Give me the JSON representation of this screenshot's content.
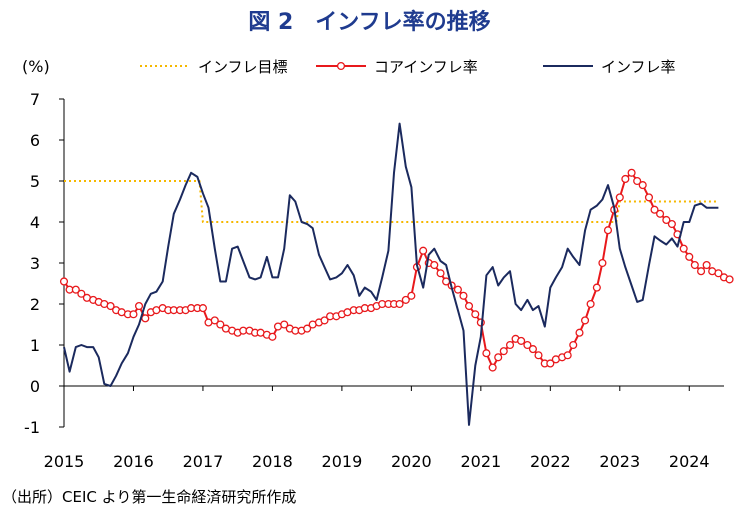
{
  "chart_data": {
    "type": "line",
    "title": "図 2　インフレ率の推移",
    "ylabel": "(%)",
    "ylim": [
      -1,
      7
    ],
    "yticks": [
      -1,
      0,
      1,
      2,
      3,
      4,
      5,
      6,
      7
    ],
    "xlim": [
      2015.0,
      2024.5
    ],
    "xticks": [
      2015,
      2016,
      2017,
      2018,
      2019,
      2020,
      2021,
      2022,
      2023,
      2024
    ],
    "grid": false,
    "legend_position": "top",
    "series": [
      {
        "name": "インフレ目標",
        "style": "dotted",
        "color": "#f5b800",
        "points": [
          [
            2015.0,
            5.0
          ],
          [
            2016.95,
            5.0
          ],
          [
            2017.0,
            4.0
          ],
          [
            2022.95,
            4.0
          ],
          [
            2023.0,
            4.5
          ],
          [
            2024.42,
            4.5
          ]
        ]
      },
      {
        "name": "コアインフレ率",
        "style": "line-markers",
        "color": "#e8191c",
        "points": [
          [
            2015.0,
            2.55
          ],
          [
            2015.08,
            2.35
          ],
          [
            2015.17,
            2.35
          ],
          [
            2015.25,
            2.25
          ],
          [
            2015.33,
            2.15
          ],
          [
            2015.42,
            2.1
          ],
          [
            2015.5,
            2.05
          ],
          [
            2015.58,
            2.0
          ],
          [
            2015.67,
            1.95
          ],
          [
            2015.75,
            1.85
          ],
          [
            2015.83,
            1.8
          ],
          [
            2015.92,
            1.75
          ],
          [
            2016.0,
            1.75
          ],
          [
            2016.08,
            1.95
          ],
          [
            2016.17,
            1.65
          ],
          [
            2016.25,
            1.8
          ],
          [
            2016.33,
            1.85
          ],
          [
            2016.42,
            1.9
          ],
          [
            2016.5,
            1.85
          ],
          [
            2016.58,
            1.85
          ],
          [
            2016.67,
            1.85
          ],
          [
            2016.75,
            1.85
          ],
          [
            2016.83,
            1.9
          ],
          [
            2016.92,
            1.9
          ],
          [
            2017.0,
            1.9
          ],
          [
            2017.08,
            1.55
          ],
          [
            2017.17,
            1.6
          ],
          [
            2017.25,
            1.5
          ],
          [
            2017.33,
            1.4
          ],
          [
            2017.42,
            1.35
          ],
          [
            2017.5,
            1.3
          ],
          [
            2017.58,
            1.35
          ],
          [
            2017.67,
            1.35
          ],
          [
            2017.75,
            1.3
          ],
          [
            2017.83,
            1.3
          ],
          [
            2017.92,
            1.25
          ],
          [
            2018.0,
            1.2
          ],
          [
            2018.08,
            1.45
          ],
          [
            2018.17,
            1.5
          ],
          [
            2018.25,
            1.4
          ],
          [
            2018.33,
            1.35
          ],
          [
            2018.42,
            1.35
          ],
          [
            2018.5,
            1.4
          ],
          [
            2018.58,
            1.5
          ],
          [
            2018.67,
            1.55
          ],
          [
            2018.75,
            1.6
          ],
          [
            2018.83,
            1.7
          ],
          [
            2018.92,
            1.7
          ],
          [
            2019.0,
            1.75
          ],
          [
            2019.08,
            1.8
          ],
          [
            2019.17,
            1.85
          ],
          [
            2019.25,
            1.85
          ],
          [
            2019.33,
            1.9
          ],
          [
            2019.42,
            1.9
          ],
          [
            2019.5,
            1.95
          ],
          [
            2019.58,
            2.0
          ],
          [
            2019.67,
            2.0
          ],
          [
            2019.75,
            2.0
          ],
          [
            2019.83,
            2.0
          ],
          [
            2019.92,
            2.1
          ],
          [
            2020.0,
            2.2
          ],
          [
            2020.08,
            2.9
          ],
          [
            2020.17,
            3.3
          ],
          [
            2020.25,
            3.0
          ],
          [
            2020.33,
            2.95
          ],
          [
            2020.42,
            2.75
          ],
          [
            2020.5,
            2.55
          ],
          [
            2020.58,
            2.45
          ],
          [
            2020.67,
            2.35
          ],
          [
            2020.75,
            2.2
          ],
          [
            2020.83,
            1.95
          ],
          [
            2020.92,
            1.75
          ],
          [
            2021.0,
            1.55
          ],
          [
            2021.08,
            0.8
          ],
          [
            2021.17,
            0.45
          ],
          [
            2021.25,
            0.7
          ],
          [
            2021.33,
            0.85
          ],
          [
            2021.42,
            1.0
          ],
          [
            2021.5,
            1.15
          ],
          [
            2021.58,
            1.1
          ],
          [
            2021.67,
            1.0
          ],
          [
            2021.75,
            0.9
          ],
          [
            2021.83,
            0.75
          ],
          [
            2021.92,
            0.55
          ],
          [
            2022.0,
            0.55
          ],
          [
            2022.08,
            0.65
          ],
          [
            2022.17,
            0.7
          ],
          [
            2022.25,
            0.75
          ],
          [
            2022.33,
            1.0
          ],
          [
            2022.42,
            1.3
          ],
          [
            2022.5,
            1.6
          ],
          [
            2022.58,
            2.0
          ],
          [
            2022.67,
            2.4
          ],
          [
            2022.75,
            3.0
          ],
          [
            2022.83,
            3.8
          ],
          [
            2022.92,
            4.3
          ],
          [
            2023.0,
            4.6
          ],
          [
            2023.08,
            5.05
          ],
          [
            2023.17,
            5.2
          ],
          [
            2023.25,
            5.0
          ],
          [
            2023.33,
            4.9
          ],
          [
            2023.42,
            4.6
          ],
          [
            2023.5,
            4.3
          ],
          [
            2023.58,
            4.2
          ],
          [
            2023.67,
            4.05
          ],
          [
            2023.75,
            3.95
          ],
          [
            2023.83,
            3.7
          ],
          [
            2023.92,
            3.35
          ],
          [
            2024.0,
            3.15
          ],
          [
            2024.08,
            2.95
          ],
          [
            2024.17,
            2.8
          ],
          [
            2024.25,
            2.95
          ],
          [
            2024.33,
            2.8
          ],
          [
            2024.42,
            2.75
          ],
          [
            2024.5,
            2.65
          ],
          [
            2024.58,
            2.6
          ]
        ]
      },
      {
        "name": "インフレ率",
        "style": "line",
        "color": "#1b2a5e",
        "points": [
          [
            2015.0,
            0.95
          ],
          [
            2015.08,
            0.35
          ],
          [
            2015.17,
            0.95
          ],
          [
            2015.25,
            1.0
          ],
          [
            2015.33,
            0.95
          ],
          [
            2015.42,
            0.95
          ],
          [
            2015.5,
            0.7
          ],
          [
            2015.58,
            0.05
          ],
          [
            2015.67,
            0.0
          ],
          [
            2015.75,
            0.25
          ],
          [
            2015.83,
            0.55
          ],
          [
            2015.92,
            0.8
          ],
          [
            2016.0,
            1.2
          ],
          [
            2016.08,
            1.5
          ],
          [
            2016.17,
            2.0
          ],
          [
            2016.25,
            2.25
          ],
          [
            2016.33,
            2.3
          ],
          [
            2016.42,
            2.55
          ],
          [
            2016.5,
            3.4
          ],
          [
            2016.58,
            4.2
          ],
          [
            2016.67,
            4.55
          ],
          [
            2016.75,
            4.9
          ],
          [
            2016.83,
            5.2
          ],
          [
            2016.92,
            5.1
          ],
          [
            2017.0,
            4.7
          ],
          [
            2017.08,
            4.35
          ],
          [
            2017.17,
            3.35
          ],
          [
            2017.25,
            2.55
          ],
          [
            2017.33,
            2.55
          ],
          [
            2017.42,
            3.35
          ],
          [
            2017.5,
            3.4
          ],
          [
            2017.58,
            3.05
          ],
          [
            2017.67,
            2.65
          ],
          [
            2017.75,
            2.6
          ],
          [
            2017.83,
            2.65
          ],
          [
            2017.92,
            3.15
          ],
          [
            2018.0,
            2.65
          ],
          [
            2018.08,
            2.65
          ],
          [
            2018.17,
            3.35
          ],
          [
            2018.25,
            4.65
          ],
          [
            2018.33,
            4.5
          ],
          [
            2018.42,
            4.0
          ],
          [
            2018.5,
            3.95
          ],
          [
            2018.58,
            3.85
          ],
          [
            2018.67,
            3.2
          ],
          [
            2018.75,
            2.9
          ],
          [
            2018.83,
            2.6
          ],
          [
            2018.92,
            2.65
          ],
          [
            2019.0,
            2.75
          ],
          [
            2019.08,
            2.95
          ],
          [
            2019.17,
            2.7
          ],
          [
            2019.25,
            2.2
          ],
          [
            2019.33,
            2.4
          ],
          [
            2019.42,
            2.3
          ],
          [
            2019.5,
            2.1
          ],
          [
            2019.58,
            2.65
          ],
          [
            2019.67,
            3.3
          ],
          [
            2019.75,
            5.2
          ],
          [
            2019.83,
            6.4
          ],
          [
            2019.92,
            5.35
          ],
          [
            2020.0,
            4.85
          ],
          [
            2020.08,
            2.95
          ],
          [
            2020.17,
            2.4
          ],
          [
            2020.25,
            3.2
          ],
          [
            2020.33,
            3.35
          ],
          [
            2020.42,
            3.05
          ],
          [
            2020.5,
            2.95
          ],
          [
            2020.58,
            2.4
          ],
          [
            2020.67,
            1.85
          ],
          [
            2020.75,
            1.35
          ],
          [
            2020.83,
            -0.95
          ],
          [
            2020.92,
            0.5
          ],
          [
            2021.0,
            1.2
          ],
          [
            2021.08,
            2.7
          ],
          [
            2021.17,
            2.9
          ],
          [
            2021.25,
            2.45
          ],
          [
            2021.33,
            2.65
          ],
          [
            2021.42,
            2.8
          ],
          [
            2021.5,
            2.0
          ],
          [
            2021.58,
            1.85
          ],
          [
            2021.67,
            2.1
          ],
          [
            2021.75,
            1.85
          ],
          [
            2021.83,
            1.95
          ],
          [
            2021.92,
            1.45
          ],
          [
            2022.0,
            2.4
          ],
          [
            2022.08,
            2.65
          ],
          [
            2022.17,
            2.9
          ],
          [
            2022.25,
            3.35
          ],
          [
            2022.33,
            3.15
          ],
          [
            2022.42,
            2.95
          ],
          [
            2022.5,
            3.8
          ],
          [
            2022.58,
            4.3
          ],
          [
            2022.67,
            4.4
          ],
          [
            2022.75,
            4.55
          ],
          [
            2022.83,
            4.9
          ],
          [
            2022.92,
            4.35
          ],
          [
            2023.0,
            3.35
          ],
          [
            2023.08,
            2.9
          ],
          [
            2023.17,
            2.45
          ],
          [
            2023.25,
            2.05
          ],
          [
            2023.33,
            2.1
          ],
          [
            2023.42,
            2.95
          ],
          [
            2023.5,
            3.65
          ],
          [
            2023.58,
            3.55
          ],
          [
            2023.67,
            3.45
          ],
          [
            2023.75,
            3.6
          ],
          [
            2023.83,
            3.4
          ],
          [
            2023.92,
            4.0
          ],
          [
            2024.0,
            4.0
          ],
          [
            2024.08,
            4.4
          ],
          [
            2024.17,
            4.45
          ],
          [
            2024.25,
            4.35
          ],
          [
            2024.33,
            4.35
          ],
          [
            2024.42,
            4.35
          ]
        ]
      }
    ]
  },
  "source_note": "（出所）CEIC より第一生命経済研究所作成"
}
